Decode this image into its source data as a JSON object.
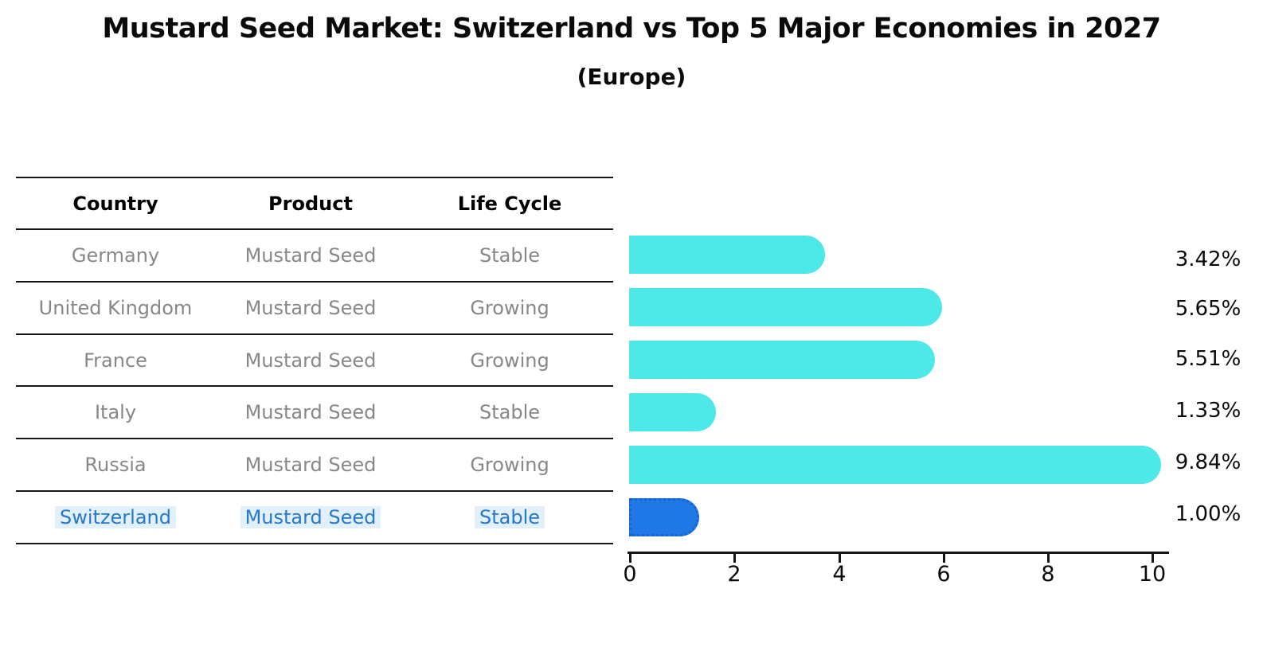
{
  "title": "Mustard Seed Market: Switzerland vs Top 5 Major Economies in 2027",
  "subtitle": "(Europe)",
  "colors": {
    "bar-cyan": "#4DE8E8",
    "bar-highlight": "#1F78E4",
    "bar-highlight-border": "#1663D9",
    "highlight-text": "#2878C8",
    "highlight-bg": "#E2F0FC",
    "row-text": "#878787",
    "header-text": "#000000",
    "axis": "#151515"
  },
  "table": {
    "headers": [
      "Country",
      "Product",
      "Life Cycle"
    ],
    "rows": [
      {
        "country": "Germany",
        "product": "Mustard Seed",
        "life_cycle": "Stable"
      },
      {
        "country": "United Kingdom",
        "product": "Mustard Seed",
        "life_cycle": "Growing"
      },
      {
        "country": "France",
        "product": "Mustard Seed",
        "life_cycle": "Growing"
      },
      {
        "country": "Italy",
        "product": "Mustard Seed",
        "life_cycle": "Stable"
      },
      {
        "country": "Russia",
        "product": "Mustard Seed",
        "life_cycle": "Growing"
      },
      {
        "country": "Switzerland",
        "product": "Mustard Seed",
        "life_cycle": "Stable"
      }
    ]
  },
  "chart_data": {
    "type": "bar",
    "orientation": "horizontal",
    "title": "Mustard Seed Market: Switzerland vs Top 5 Major Economies in 2027 (Europe)",
    "categories": [
      "Germany",
      "United Kingdom",
      "France",
      "Italy",
      "Russia",
      "Switzerland"
    ],
    "values": [
      3.42,
      5.65,
      5.51,
      1.33,
      9.84,
      1.0
    ],
    "value_labels": [
      "3.42%",
      "5.65%",
      "5.51%",
      "1.33%",
      "9.84%",
      "1.00%"
    ],
    "unit": "%",
    "xlim": [
      0,
      10
    ],
    "x_ticks": [
      "0",
      "2",
      "4",
      "6",
      "8",
      "10"
    ],
    "grid": false,
    "legend": false,
    "highlight_index": 5,
    "series_meta": {
      "life_cycle": [
        "Stable",
        "Growing",
        "Growing",
        "Stable",
        "Growing",
        "Stable"
      ],
      "product": "Mustard Seed"
    }
  }
}
